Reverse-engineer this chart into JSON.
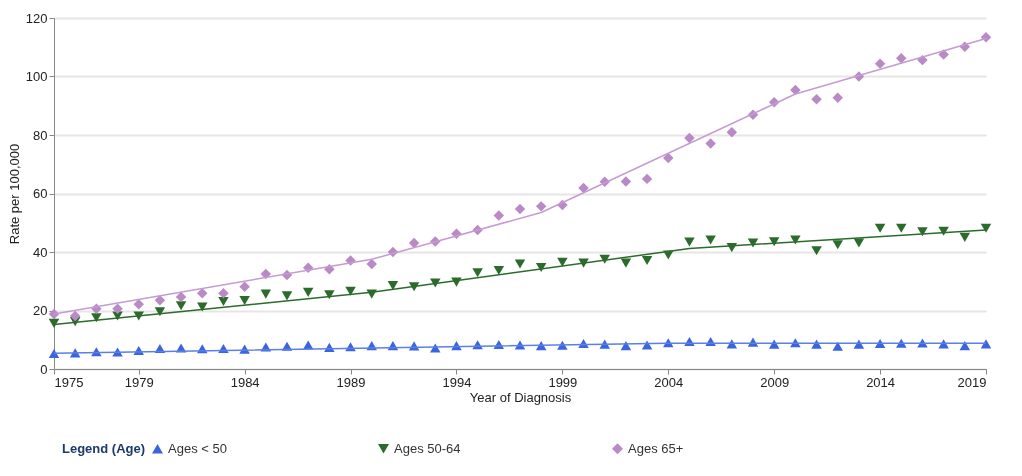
{
  "chart_data": {
    "type": "scatter",
    "xlabel": "Year of Diagnosis",
    "ylabel": "Rate per 100,000",
    "legend_title": "Legend (Age)",
    "legend": "bottom",
    "grid": "y",
    "xlim": [
      1975,
      2019
    ],
    "xticks": [
      1975,
      1979,
      1984,
      1989,
      1994,
      1999,
      2004,
      2009,
      2014,
      2019
    ],
    "ylim": [
      0,
      120
    ],
    "yticks": [
      0,
      20,
      40,
      60,
      80,
      100,
      120
    ],
    "x": [
      1975,
      1976,
      1977,
      1978,
      1979,
      1980,
      1981,
      1982,
      1983,
      1984,
      1985,
      1986,
      1987,
      1988,
      1989,
      1990,
      1991,
      1992,
      1993,
      1994,
      1995,
      1996,
      1997,
      1998,
      1999,
      2000,
      2001,
      2002,
      2003,
      2004,
      2005,
      2006,
      2007,
      2008,
      2009,
      2010,
      2011,
      2012,
      2013,
      2014,
      2015,
      2016,
      2017,
      2018,
      2019
    ],
    "series": [
      {
        "name": "Ages < 50",
        "marker": "triangle",
        "color": "#3a64e0",
        "values": [
          5.3,
          5.5,
          5.9,
          5.8,
          6.3,
          7.0,
          7.2,
          6.9,
          7.0,
          6.8,
          7.5,
          7.8,
          8.2,
          7.4,
          7.6,
          8.0,
          8.0,
          7.9,
          7.2,
          8.0,
          8.3,
          8.4,
          8.2,
          8.0,
          8.1,
          8.7,
          8.5,
          8.0,
          8.2,
          9.0,
          9.4,
          9.4,
          8.6,
          9.2,
          8.5,
          9.0,
          8.5,
          7.8,
          8.5,
          8.7,
          8.8,
          8.9,
          8.6,
          8.0,
          8.6
        ]
      },
      {
        "name": "Ages 50-64",
        "marker": "triangle-down",
        "color": "#2b6b2b",
        "values": [
          15.6,
          16.2,
          17.5,
          18.1,
          18.1,
          19.6,
          21.6,
          21.2,
          23.1,
          23.4,
          25.6,
          25.0,
          26.2,
          25.4,
          26.6,
          25.6,
          28.5,
          28.1,
          29.4,
          29.7,
          32.9,
          33.7,
          35.9,
          34.7,
          36.5,
          36.2,
          37.5,
          36.2,
          37.1,
          39.0,
          43.4,
          44.1,
          41.5,
          43.1,
          43.5,
          44.1,
          40.4,
          42.5,
          43.1,
          48.1,
          48.1,
          46.9,
          47.1,
          45.0,
          48.1
        ]
      },
      {
        "name": "Ages 65+",
        "marker": "diamond",
        "color": "#b98ac6",
        "values": [
          18.8,
          18.1,
          20.6,
          20.6,
          22.1,
          23.5,
          24.6,
          25.9,
          25.9,
          28.1,
          32.5,
          32.1,
          34.6,
          34.1,
          37.1,
          35.9,
          40.0,
          43.1,
          43.6,
          46.2,
          47.5,
          52.5,
          54.7,
          55.6,
          56.1,
          61.9,
          64.0,
          64.1,
          65.0,
          72.1,
          79.0,
          77.1,
          80.9,
          86.9,
          91.2,
          95.4,
          92.2,
          92.7,
          100.0,
          104.4,
          106.2,
          105.6,
          107.5,
          110.2,
          113.4
        ]
      },
      {
        "type": "line",
        "color": "#5b7fe8",
        "x": [
          1975,
          2004,
          2019
        ],
        "values": [
          5.4,
          8.8,
          8.8
        ]
      },
      {
        "type": "line",
        "color": "#2b6b2b",
        "x": [
          1975,
          1990,
          2005,
          2019
        ],
        "values": [
          15.2,
          26.2,
          41.2,
          47.5
        ]
      },
      {
        "type": "line",
        "color": "#c59bd2",
        "x": [
          1975,
          1990,
          1998,
          2010,
          2019
        ],
        "values": [
          18.8,
          37.5,
          53.5,
          94.0,
          113.0
        ]
      }
    ]
  }
}
